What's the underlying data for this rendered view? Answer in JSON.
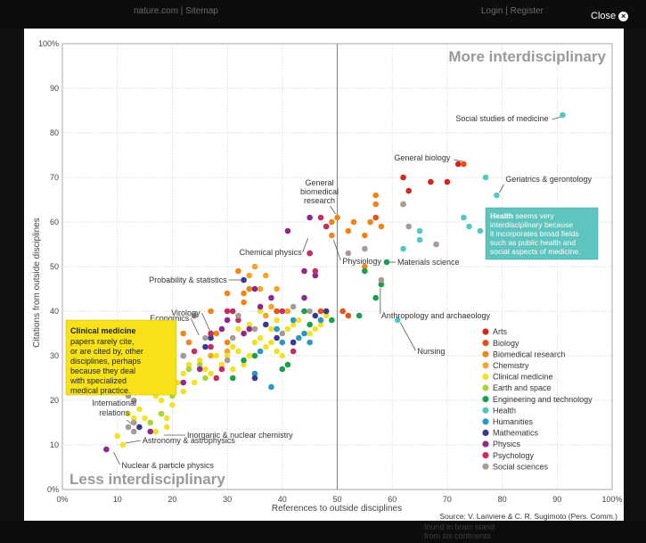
{
  "topbar": {
    "nav_left": "nature.com | Sitemap",
    "nav_right": "Login | Register",
    "close_label": "Close"
  },
  "bottombar": {
    "ghost_line1": "found in brain stand",
    "ghost_line2": "from six continents"
  },
  "chart_data": {
    "type": "scatter",
    "xlabel": "References to outside disciplines",
    "ylabel": "Citations from outside disciplines",
    "xlim": [
      0,
      100
    ],
    "ylim": [
      0,
      100
    ],
    "x_ticks": [
      "0%",
      "10",
      "20",
      "30",
      "40",
      "50",
      "60",
      "70",
      "80",
      "90",
      "100%"
    ],
    "y_ticks": [
      "0%",
      "10",
      "20",
      "30",
      "40",
      "50",
      "60",
      "70",
      "80",
      "90",
      "100%"
    ],
    "grid": true,
    "corner_top": "More interdisciplinary",
    "corner_bottom": "Less interdisciplinary",
    "source": "Source: V. Lariviere & C. R. Sugimoto (Pers. Comm.)",
    "callouts": {
      "clinical": {
        "title": "Clinical medicine",
        "lines": [
          "papers rarely cite,",
          "or are cited by, other",
          "disciplines, perhaps",
          "because they deal",
          "with specialized",
          "medical practice."
        ]
      },
      "health": {
        "title": "Health",
        "first_rest": " seems very",
        "lines": [
          "interdisciplinary because",
          "it incorporates broad fields",
          "such as public health and",
          "social aspects of medicine."
        ]
      }
    },
    "legend_position": "right",
    "series": [
      {
        "name": "Arts",
        "color": "#d2261f",
        "points": [
          [
            62,
            70
          ],
          [
            63,
            67
          ],
          [
            67,
            69
          ],
          [
            70,
            69
          ],
          [
            72,
            73
          ]
        ]
      },
      {
        "name": "Biology",
        "color": "#e3541c",
        "points": [
          [
            73,
            73
          ],
          [
            62,
            64
          ],
          [
            57,
            61
          ],
          [
            51,
            40
          ],
          [
            52,
            39
          ],
          [
            39,
            40
          ],
          [
            47,
            40
          ],
          [
            42,
            33
          ]
        ]
      },
      {
        "name": "Biomedical research",
        "color": "#f0851b",
        "points": [
          [
            56,
            60
          ],
          [
            57,
            64
          ],
          [
            58,
            59
          ],
          [
            57,
            66
          ],
          [
            55,
            57
          ],
          [
            55,
            50
          ],
          [
            52,
            58
          ],
          [
            49,
            60
          ],
          [
            50,
            61
          ],
          [
            49,
            57
          ],
          [
            53,
            60
          ],
          [
            30,
            44
          ],
          [
            33,
            42
          ],
          [
            34,
            45
          ],
          [
            30,
            33
          ],
          [
            28,
            35
          ],
          [
            27,
            40
          ],
          [
            22,
            35
          ],
          [
            23,
            33
          ],
          [
            32,
            49
          ],
          [
            33,
            44
          ]
        ]
      },
      {
        "name": "Chemistry",
        "color": "#f3a52b",
        "points": [
          [
            34,
            48
          ],
          [
            36,
            45
          ],
          [
            35,
            50
          ],
          [
            37,
            48
          ],
          [
            39,
            45
          ],
          [
            38,
            41
          ],
          [
            37,
            39
          ],
          [
            41,
            40
          ],
          [
            33,
            35
          ],
          [
            30,
            31
          ],
          [
            27,
            30
          ]
        ]
      },
      {
        "name": "Clinical medicine",
        "color": "#f2e12a",
        "points": [
          [
            8,
            9
          ],
          [
            10,
            12
          ],
          [
            11,
            10
          ],
          [
            12,
            17
          ],
          [
            13,
            15
          ],
          [
            13,
            16
          ],
          [
            14,
            18
          ],
          [
            15,
            16
          ],
          [
            16,
            15
          ],
          [
            17,
            21
          ],
          [
            18,
            20
          ],
          [
            17,
            13
          ],
          [
            19,
            16
          ],
          [
            20,
            19
          ],
          [
            18,
            17
          ],
          [
            19,
            14
          ],
          [
            20,
            25
          ],
          [
            21,
            24
          ],
          [
            22,
            26
          ],
          [
            22,
            22
          ],
          [
            23,
            28
          ],
          [
            24,
            24
          ],
          [
            25,
            29
          ],
          [
            26,
            27
          ],
          [
            27,
            26
          ],
          [
            28,
            30
          ],
          [
            29,
            28
          ],
          [
            30,
            30
          ],
          [
            31,
            32
          ],
          [
            31,
            27
          ],
          [
            32,
            31
          ],
          [
            33,
            28
          ],
          [
            34,
            30
          ],
          [
            35,
            33
          ],
          [
            36,
            34
          ],
          [
            37,
            32
          ],
          [
            38,
            33
          ],
          [
            39,
            31
          ],
          [
            40,
            30
          ],
          [
            41,
            36
          ],
          [
            42,
            37
          ],
          [
            43,
            38
          ],
          [
            44,
            40
          ],
          [
            45,
            35
          ],
          [
            46,
            36
          ],
          [
            47,
            37
          ],
          [
            48,
            39
          ],
          [
            38,
            36
          ],
          [
            34,
            37
          ],
          [
            36,
            40
          ],
          [
            32,
            36
          ],
          [
            39,
            38
          ]
        ]
      },
      {
        "name": "Earth and space",
        "color": "#a8d43a",
        "points": [
          [
            18,
            17
          ],
          [
            16,
            15
          ],
          [
            20,
            21
          ],
          [
            25,
            28
          ],
          [
            26,
            25
          ],
          [
            23,
            27
          ]
        ]
      },
      {
        "name": "Engineering and technology",
        "color": "#18a04c",
        "points": [
          [
            59,
            51
          ],
          [
            58,
            46
          ],
          [
            55,
            49
          ],
          [
            54,
            39
          ],
          [
            57,
            43
          ],
          [
            49,
            38
          ],
          [
            45,
            37
          ],
          [
            44,
            40
          ],
          [
            41,
            28
          ],
          [
            40,
            27
          ],
          [
            35,
            30
          ],
          [
            33,
            29
          ],
          [
            31,
            25
          ]
        ]
      },
      {
        "name": "Health",
        "color": "#55c7c2",
        "points": [
          [
            91,
            84
          ],
          [
            77,
            70
          ],
          [
            79,
            66
          ],
          [
            73,
            61
          ],
          [
            74,
            59
          ],
          [
            76,
            58
          ],
          [
            65,
            58
          ],
          [
            65,
            56
          ],
          [
            62,
            54
          ],
          [
            61,
            38
          ]
        ]
      },
      {
        "name": "Humanities",
        "color": "#2d98c5",
        "points": [
          [
            38,
            23
          ],
          [
            36,
            31
          ],
          [
            39,
            36
          ],
          [
            40,
            33
          ],
          [
            43,
            34
          ],
          [
            44,
            35
          ],
          [
            42,
            38
          ],
          [
            47,
            38
          ],
          [
            45,
            33
          ],
          [
            35,
            26
          ]
        ]
      },
      {
        "name": "Mathematics",
        "color": "#373a91",
        "points": [
          [
            33,
            47
          ],
          [
            37,
            37
          ],
          [
            39,
            34
          ],
          [
            42,
            33
          ],
          [
            46,
            39
          ],
          [
            48,
            40
          ],
          [
            35,
            25
          ],
          [
            27,
            34
          ],
          [
            26,
            32
          ],
          [
            24,
            39
          ],
          [
            22,
            30
          ],
          [
            14,
            14
          ]
        ]
      },
      {
        "name": "Physics",
        "color": "#8c2a8f",
        "points": [
          [
            41,
            58
          ],
          [
            45,
            61
          ],
          [
            44,
            49
          ],
          [
            45,
            53
          ],
          [
            46,
            48
          ],
          [
            44,
            43
          ],
          [
            38,
            43
          ],
          [
            35,
            45
          ],
          [
            36,
            41
          ],
          [
            34,
            36
          ],
          [
            33,
            35
          ],
          [
            30,
            38
          ],
          [
            29,
            36
          ],
          [
            25,
            27
          ],
          [
            22,
            24
          ],
          [
            16,
            13
          ],
          [
            8,
            9
          ]
        ]
      },
      {
        "name": "Psychology",
        "color": "#c42e64",
        "points": [
          [
            47,
            61
          ],
          [
            48,
            59
          ],
          [
            45,
            53
          ],
          [
            46,
            49
          ],
          [
            42,
            31
          ],
          [
            40,
            40
          ],
          [
            31,
            40
          ],
          [
            32,
            38
          ],
          [
            30,
            40
          ],
          [
            27,
            32
          ],
          [
            28,
            25
          ],
          [
            24,
            31
          ],
          [
            29,
            27
          ],
          [
            27,
            35
          ]
        ]
      },
      {
        "name": "Social sciences",
        "color": "#a89a95",
        "points": [
          [
            68,
            55
          ],
          [
            62,
            64
          ],
          [
            63,
            59
          ],
          [
            58,
            47
          ],
          [
            55,
            54
          ],
          [
            52,
            53
          ],
          [
            42,
            41
          ],
          [
            45,
            40
          ],
          [
            40,
            35
          ],
          [
            35,
            36
          ],
          [
            32,
            39
          ],
          [
            31,
            34
          ],
          [
            30,
            29
          ],
          [
            24,
            39
          ],
          [
            26,
            34
          ],
          [
            22,
            30
          ],
          [
            13,
            13
          ],
          [
            13,
            15
          ],
          [
            12,
            14
          ],
          [
            13,
            20
          ],
          [
            12,
            21
          ],
          [
            11,
            22
          ],
          [
            10,
            24
          ],
          [
            11,
            25
          ],
          [
            10,
            23
          ]
        ]
      }
    ],
    "annotations": [
      {
        "text": "Social studies of medicine",
        "x": 91,
        "y": 84
      },
      {
        "text": "General biology",
        "x": 73,
        "y": 73
      },
      {
        "text": "Geriatrics & gerontology",
        "x": 79,
        "y": 66
      },
      {
        "text": "General",
        "x": 50,
        "y": 61
      },
      {
        "text": "biomedical",
        "x": 50,
        "y": 61
      },
      {
        "text": "research",
        "x": 50,
        "y": 61
      },
      {
        "text": "Chemical physics",
        "x": 45,
        "y": 57
      },
      {
        "text": "Physiology",
        "x": 49,
        "y": 57
      },
      {
        "text": "Materials science",
        "x": 59,
        "y": 51
      },
      {
        "text": "Probability & statistics",
        "x": 33,
        "y": 47
      },
      {
        "text": "Anthropology and archaeology",
        "x": 58,
        "y": 46
      },
      {
        "text": "Virology",
        "x": 27,
        "y": 35
      },
      {
        "text": "Economics",
        "x": 25,
        "y": 34
      },
      {
        "text": "Nursing",
        "x": 61,
        "y": 38
      },
      {
        "text": "International",
        "x": 13,
        "y": 15
      },
      {
        "text": "relations",
        "x": 13,
        "y": 15
      },
      {
        "text": "Inorganic & nuclear chemistry",
        "x": 18,
        "y": 12
      },
      {
        "text": "Astronomy & astrophysics",
        "x": 11,
        "y": 10
      },
      {
        "text": "Nuclear & particle physics",
        "x": 9,
        "y": 9
      }
    ]
  }
}
